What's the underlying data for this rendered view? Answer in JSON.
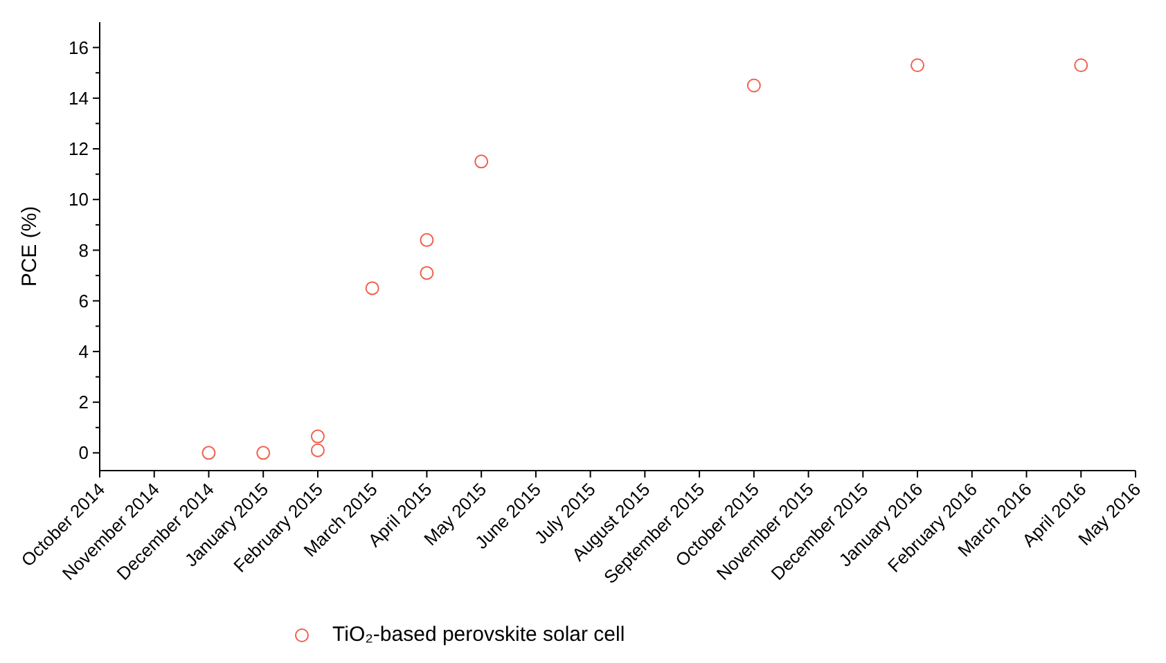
{
  "chart_data": {
    "type": "scatter",
    "ylabel": "PCE (%)",
    "categories": [
      "October 2014",
      "November 2014",
      "December 2014",
      "January 2015",
      "February 2015",
      "March 2015",
      "April 2015",
      "May 2015",
      "June 2015",
      "July 2015",
      "August 2015",
      "September 2015",
      "October 2015",
      "November 2015",
      "December 2015",
      "January 2016",
      "February 2016",
      "March 2016",
      "April 2016",
      "May 2016"
    ],
    "series": [
      {
        "name": "TiO₂-based perovskite solar cell",
        "color": "#f0604d",
        "x": [
          "December 2014",
          "January 2015",
          "February 2015",
          "February 2015",
          "March 2015",
          "April 2015",
          "April 2015",
          "May 2015",
          "October 2015",
          "January 2016",
          "April 2016"
        ],
        "values": [
          0,
          0,
          0.65,
          0.1,
          6.5,
          8.4,
          7.1,
          11.5,
          14.5,
          15.3,
          15.3
        ]
      }
    ],
    "ylim": [
      -0.7,
      17
    ],
    "yticks": [
      0,
      {
        "value": 1,
        "label": null
      },
      2,
      {
        "value": 3,
        "label": null
      },
      4,
      {
        "value": 5,
        "label": null
      },
      6,
      {
        "value": 7,
        "label": null
      },
      8,
      {
        "value": 9,
        "label": null
      },
      10,
      {
        "value": 11,
        "label": null
      },
      12,
      {
        "value": 13,
        "label": null
      },
      14,
      {
        "value": 15,
        "label": null
      },
      16
    ],
    "marker": "circle",
    "legend": "bottom",
    "grid": false
  }
}
